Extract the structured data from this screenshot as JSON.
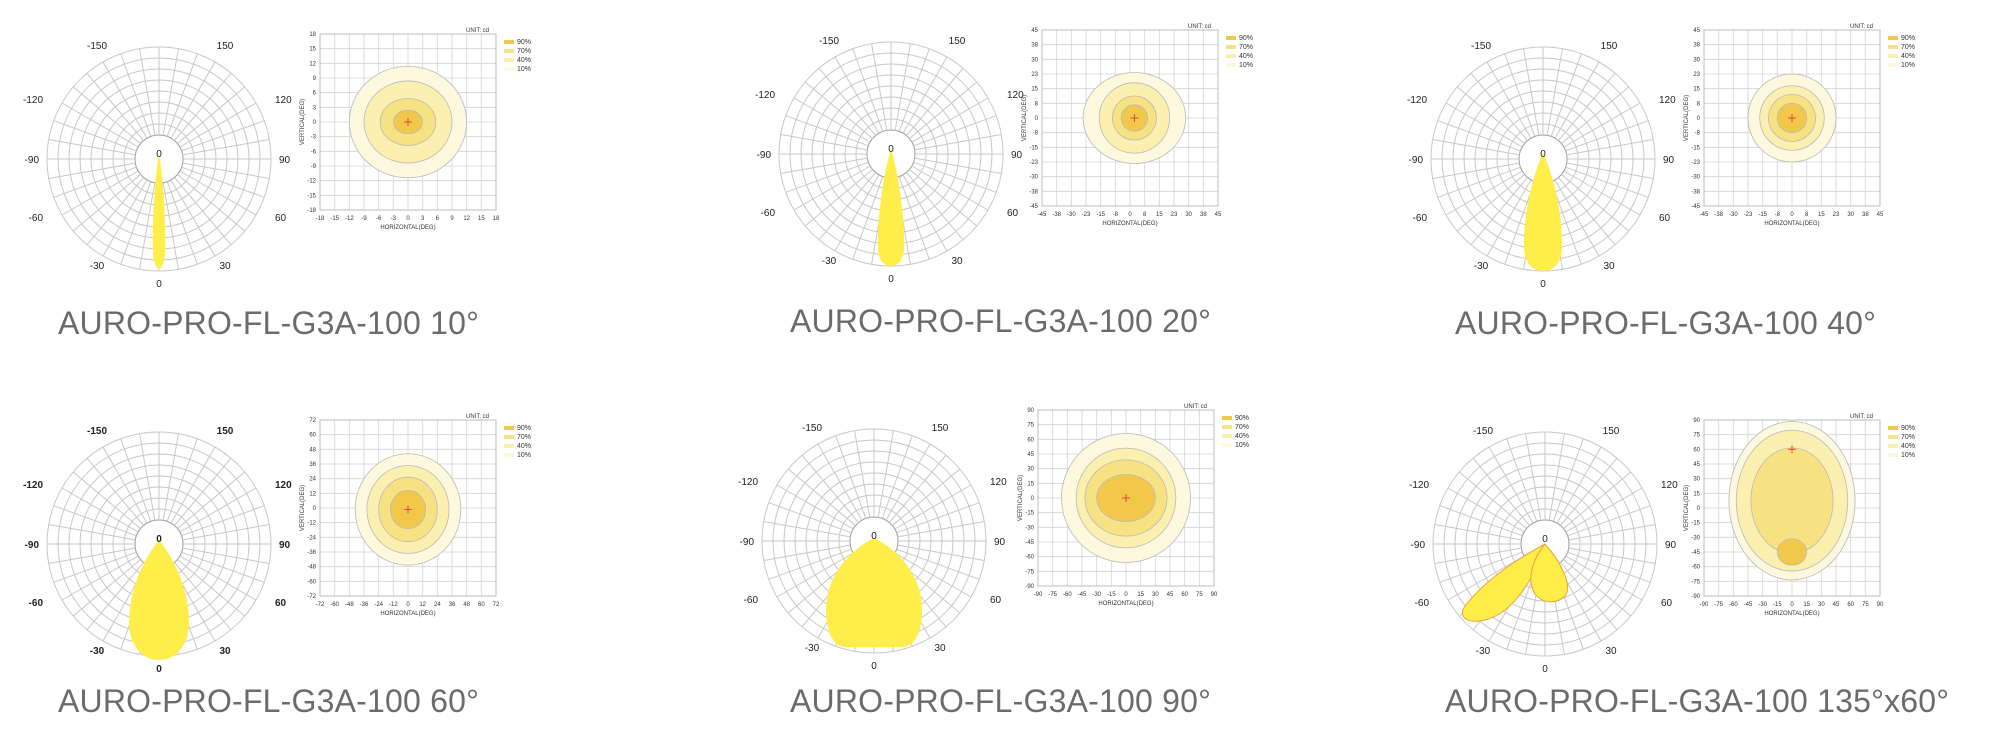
{
  "colors": {
    "beam": "#ffee4a",
    "beam_edge": "#e8a33a",
    "iso90": "#f2c84b",
    "iso70": "#f7e283",
    "iso40": "#fbf0b0",
    "iso10": "#fdf8de",
    "grid": "#c8c8c8",
    "center_mark": "#e0483a",
    "caption": "#6b6b6b"
  },
  "panels": [
    {
      "caption": "AURO-PRO-FL-G3A-100 10°",
      "polar_labels": {
        "top": "0",
        "bottom": "0",
        "left30": "-30",
        "left60": "-60",
        "left90": "-90",
        "left120": "-120",
        "left150": "-150",
        "right30": "30",
        "right60": "60",
        "right90": "90",
        "right120": "120",
        "right150": "150"
      },
      "iso": {
        "unit": "UNIT: cd",
        "xlabel": "HORIZONTAL(DEG)",
        "ylabel": "VERTICAL(DEG)",
        "ticks": [
          "-18",
          "-15",
          "-12",
          "-9",
          "-6",
          "-3",
          "0",
          "3",
          "6",
          "9",
          "12",
          "15",
          "18"
        ],
        "legend": [
          "90%",
          "70%",
          "40%",
          "10%"
        ]
      }
    },
    {
      "caption": "AURO-PRO-FL-G3A-100 20°",
      "polar_labels": {
        "top": "0",
        "bottom": "0",
        "left30": "-30",
        "left60": "-60",
        "left90": "-90",
        "left120": "-120",
        "left150": "-150",
        "right30": "30",
        "right60": "60",
        "right90": "90",
        "right120": "120",
        "right150": "150"
      },
      "iso": {
        "unit": "UNIT: cd",
        "xlabel": "HORIZONTAL(DEG)",
        "ylabel": "VERTICAL(DEG)",
        "ticks": [
          "-45",
          "-38",
          "-30",
          "-23",
          "-15",
          "-8",
          "0",
          "8",
          "15",
          "23",
          "30",
          "38",
          "45"
        ],
        "legend": [
          "90%",
          "70%",
          "40%",
          "10%"
        ]
      }
    },
    {
      "caption": "AURO-PRO-FL-G3A-100 40°",
      "polar_labels": {
        "top": "0",
        "bottom": "0",
        "left30": "-30",
        "left60": "-60",
        "left90": "-90",
        "left120": "-120",
        "left150": "-150",
        "right30": "30",
        "right60": "60",
        "right90": "90",
        "right120": "120",
        "right150": "150"
      },
      "iso": {
        "unit": "UNIT: cd",
        "xlabel": "HORIZONTAL(DEG)",
        "ylabel": "VERTICAL(DEG)",
        "ticks": [
          "-45",
          "-38",
          "-30",
          "-23",
          "-15",
          "-8",
          "0",
          "8",
          "15",
          "23",
          "30",
          "38",
          "45"
        ],
        "legend": [
          "90%",
          "70%",
          "40%",
          "10%"
        ]
      }
    },
    {
      "caption": "AURO-PRO-FL-G3A-100 60°",
      "polar_labels": {
        "top": "0",
        "bottom": "0",
        "left30": "-30",
        "left60": "-60",
        "left90": "-90",
        "left120": "-120",
        "left150": "-150",
        "right30": "30",
        "right60": "60",
        "right90": "90",
        "right120": "120",
        "right150": "150"
      },
      "iso": {
        "unit": "UNIT: cd",
        "xlabel": "HORIZONTAL(DEG)",
        "ylabel": "VERTICAL(DEG)",
        "ticks": [
          "-72",
          "-60",
          "-48",
          "-36",
          "-24",
          "-12",
          "0",
          "12",
          "24",
          "36",
          "48",
          "60",
          "72"
        ],
        "legend": [
          "90%",
          "70%",
          "40%",
          "10%"
        ]
      }
    },
    {
      "caption": "AURO-PRO-FL-G3A-100 90°",
      "polar_labels": {
        "top": "0",
        "bottom": "0",
        "left30": "-30",
        "left60": "-60",
        "left90": "-90",
        "left120": "-120",
        "left150": "-150",
        "right30": "30",
        "right60": "60",
        "right90": "90",
        "right120": "120",
        "right150": "150"
      },
      "iso": {
        "unit": "UNIT: cd",
        "xlabel": "HORIZONTAL(DEG)",
        "ylabel": "VERTICAL(DEG)",
        "ticks": [
          "-90",
          "-75",
          "-60",
          "-45",
          "-30",
          "-15",
          "0",
          "15",
          "30",
          "45",
          "60",
          "75",
          "90"
        ],
        "legend": [
          "90%",
          "70%",
          "40%",
          "10%"
        ]
      }
    },
    {
      "caption": "AURO-PRO-FL-G3A-100 135°x60°",
      "polar_labels": {
        "top": "0",
        "bottom": "0",
        "left30": "-30",
        "left60": "-60",
        "left90": "-90",
        "left120": "-120",
        "left150": "-150",
        "right30": "30",
        "right60": "60",
        "right90": "90",
        "right120": "120",
        "right150": "150"
      },
      "iso": {
        "unit": "UNIT: cd",
        "xlabel": "HORIZONTAL(DEG)",
        "ylabel": "VERTICAL(DEG)",
        "ticks": [
          "-90",
          "-75",
          "-60",
          "-45",
          "-30",
          "-15",
          "0",
          "15",
          "30",
          "45",
          "60",
          "75",
          "90"
        ],
        "legend": [
          "90%",
          "70%",
          "40%",
          "10%"
        ]
      }
    }
  ]
}
